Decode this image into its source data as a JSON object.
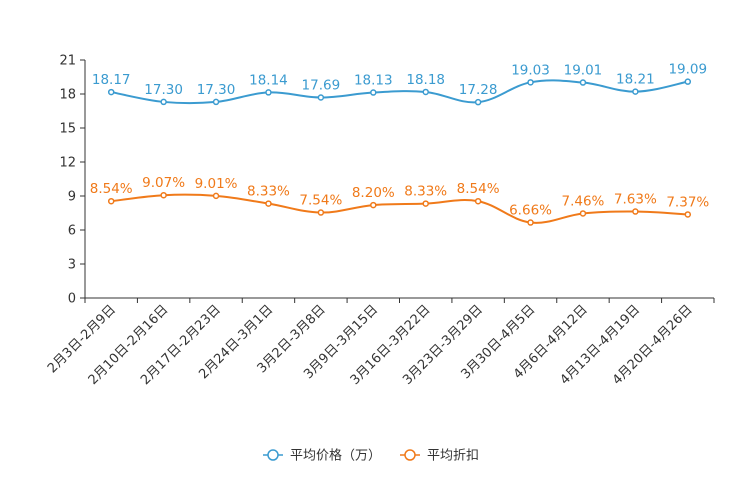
{
  "chart_data": {
    "type": "line",
    "title": "",
    "xlabel": "",
    "ylabel": "",
    "ylim": [
      0,
      21
    ],
    "yticks": [
      0,
      3,
      6,
      9,
      12,
      15,
      18,
      21
    ],
    "grid": false,
    "legend_position": "bottom",
    "categories": [
      "2月3日-2月9日",
      "2月10日-2月16日",
      "2月17日-2月23日",
      "2月24日-3月1日",
      "3月2日-3月8日",
      "3月9日-3月15日",
      "3月16日-3月22日",
      "3月23日-3月29日",
      "3月30日-4月5日",
      "4月6日-4月12日",
      "4月13日-4月19日",
      "4月20日-4月26日"
    ],
    "series": [
      {
        "name": "平均价格（万）",
        "color": "#3b9bd0",
        "values": [
          18.17,
          17.3,
          17.3,
          18.14,
          17.69,
          18.13,
          18.18,
          17.28,
          19.03,
          19.01,
          18.21,
          19.09
        ],
        "labels": [
          "18.17",
          "17.30",
          "17.30",
          "18.14",
          "17.69",
          "18.13",
          "18.18",
          "17.28",
          "19.03",
          "19.01",
          "18.21",
          "19.09"
        ]
      },
      {
        "name": "平均折扣",
        "color": "#f07a1a",
        "values": [
          8.54,
          9.07,
          9.01,
          8.33,
          7.54,
          8.2,
          8.33,
          8.54,
          6.66,
          7.46,
          7.63,
          7.37
        ],
        "labels": [
          "8.54%",
          "9.07%",
          "9.01%",
          "8.33%",
          "7.54%",
          "8.20%",
          "8.33%",
          "8.54%",
          "6.66%",
          "7.46%",
          "7.63%",
          "7.37%"
        ]
      }
    ]
  }
}
